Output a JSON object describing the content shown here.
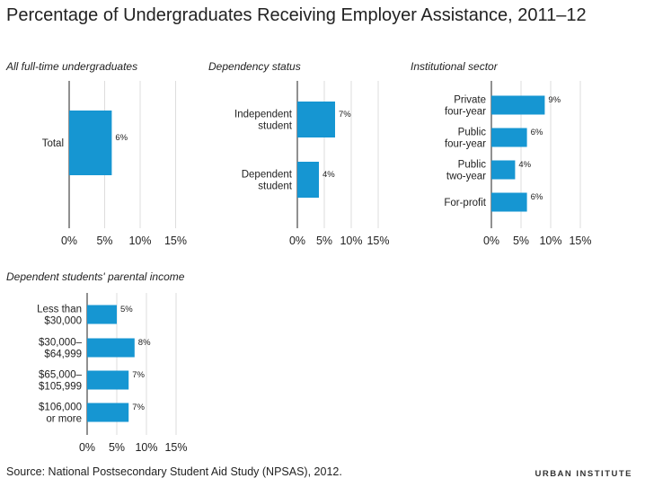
{
  "title": "Percentage of Undergraduates Receiving Employer Assistance, 2011–12",
  "source": "Source: National Postsecondary Student Aid Study (NPSAS), 2012.",
  "brand": "URBAN INSTITUTE",
  "colors": {
    "bar": "#1696d2",
    "grid": "#dedddd",
    "axis": "#222222"
  },
  "chart_data": [
    {
      "type": "bar",
      "orientation": "horizontal",
      "title": "All full-time undergraduates",
      "categories": [
        [
          "Total"
        ]
      ],
      "values": [
        6
      ],
      "value_labels": [
        "6%"
      ],
      "xlim": [
        0,
        15
      ],
      "xticks": [
        "0%",
        "5%",
        "10%",
        "15%"
      ],
      "grid": true
    },
    {
      "type": "bar",
      "orientation": "horizontal",
      "title": "Dependency status",
      "categories": [
        [
          "Independent",
          "student"
        ],
        [
          "Dependent",
          "student"
        ]
      ],
      "values": [
        7,
        4
      ],
      "value_labels": [
        "7%",
        "4%"
      ],
      "xlim": [
        0,
        15
      ],
      "xticks": [
        "0%",
        "5%",
        "10%",
        "15%"
      ],
      "grid": true
    },
    {
      "type": "bar",
      "orientation": "horizontal",
      "title": "Institutional sector",
      "categories": [
        [
          "Private",
          "four-year"
        ],
        [
          "Public",
          "four-year"
        ],
        [
          "Public",
          "two-year"
        ],
        [
          "For-profit"
        ]
      ],
      "values": [
        9,
        6,
        4,
        6
      ],
      "value_labels": [
        "9%",
        "6%",
        "4%",
        "6%"
      ],
      "xlim": [
        0,
        15
      ],
      "xticks": [
        "0%",
        "5%",
        "10%",
        "15%"
      ],
      "grid": true
    },
    {
      "type": "bar",
      "orientation": "horizontal",
      "title": "Dependent students' parental income",
      "categories": [
        [
          "Less than",
          "$30,000"
        ],
        [
          "$30,000–",
          "$64,999"
        ],
        [
          "$65,000–",
          "$105,999"
        ],
        [
          "$106,000",
          "or more"
        ]
      ],
      "values": [
        5,
        8,
        7,
        7
      ],
      "value_labels": [
        "5%",
        "8%",
        "7%",
        "7%"
      ],
      "xlim": [
        0,
        15
      ],
      "xticks": [
        "0%",
        "5%",
        "10%",
        "15%"
      ],
      "grid": true
    }
  ]
}
